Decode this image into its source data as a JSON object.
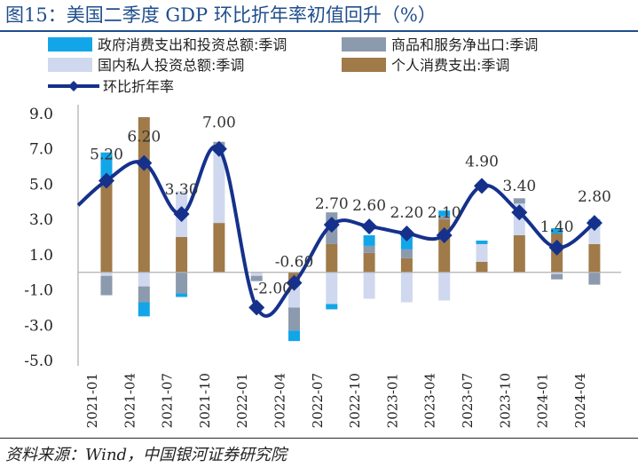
{
  "title": "图15：美国二季度 GDP 环比折年率初值回升（%）",
  "source": "资料来源：Wind，中国银河证券研究院",
  "chart_data": {
    "type": "bar",
    "stacked": true,
    "categories": [
      "2021-01",
      "2021-04",
      "2021-07",
      "2021-10",
      "2022-01",
      "2022-04",
      "2022-07",
      "2022-10",
      "2023-01",
      "2023-04",
      "2023-07",
      "2023-10",
      "2024-01",
      "2024-04"
    ],
    "x_tick_labels": [
      "2021-01",
      "2021-04",
      "2021-07",
      "2021-10",
      "2022-01",
      "2022-04",
      "2022-07",
      "2022-10",
      "2023-01",
      "2023-04",
      "2023-07",
      "2023-10",
      "2024-01",
      "2024-04"
    ],
    "ylim": [
      -5.0,
      9.0
    ],
    "yticks": [
      "9.0",
      "7.0",
      "5.0",
      "3.0",
      "1.0",
      "-1.0",
      "-3.0",
      "-5.0"
    ],
    "series": [
      {
        "name": "个人消费支出:季调",
        "color": "#a07a48",
        "values": [
          5.2,
          8.8,
          2.0,
          2.8,
          0.0,
          -0.6,
          1.6,
          1.1,
          0.8,
          3.0,
          0.6,
          2.1,
          2.2,
          1.6
        ]
      },
      {
        "name": "国内私人投资总额:季调",
        "color": "#cfd8ee",
        "values": [
          -0.2,
          -0.8,
          2.6,
          4.3,
          -0.2,
          -1.4,
          -1.8,
          -1.5,
          -1.7,
          -1.6,
          1.0,
          1.8,
          -0.1,
          1.0
        ]
      },
      {
        "name": "商品和服务净出口:季调",
        "color": "#8c9aae",
        "values": [
          -1.1,
          -0.9,
          -1.2,
          0.3,
          -0.3,
          -1.3,
          1.8,
          0.4,
          0.5,
          0.2,
          0.0,
          0.3,
          -0.3,
          -0.7
        ]
      },
      {
        "name": "政府消费支出和投资总额:季调",
        "color": "#12a6e8",
        "values": [
          1.6,
          -0.8,
          -0.2,
          0.0,
          0.0,
          -0.6,
          -0.3,
          0.6,
          0.8,
          0.3,
          0.2,
          0.0,
          0.3,
          0.4
        ]
      }
    ],
    "line": {
      "name": "环比折年率",
      "color": "#15318c",
      "values": [
        5.2,
        6.2,
        3.3,
        7.0,
        -2.0,
        -0.6,
        2.7,
        2.6,
        2.2,
        2.1,
        4.9,
        3.4,
        1.4,
        2.8
      ],
      "start_value": 3.8,
      "labels": [
        "5.20",
        "6.20",
        "3.30",
        "7.00",
        "-2.00",
        "-0.60",
        "2.70",
        "2.60",
        "2.20",
        "2.10",
        "4.90",
        "3.40",
        "1.40",
        "2.80"
      ]
    },
    "legend": [
      {
        "name": "政府消费支出和投资总额:季调",
        "kind": "bar",
        "color": "#12a6e8"
      },
      {
        "name": "商品和服务净出口:季调",
        "kind": "bar",
        "color": "#8c9aae"
      },
      {
        "name": "国内私人投资总额:季调",
        "kind": "bar",
        "color": "#cfd8ee"
      },
      {
        "name": "个人消费支出:季调",
        "kind": "bar",
        "color": "#a07a48"
      },
      {
        "name": "环比折年率",
        "kind": "line",
        "color": "#15318c"
      }
    ],
    "legend_placement": "top-left",
    "grid": false
  }
}
